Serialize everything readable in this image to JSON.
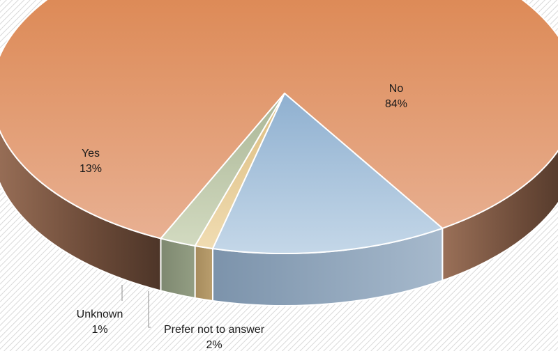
{
  "chart_data": {
    "type": "pie",
    "title": "",
    "style": "3d",
    "slices": [
      {
        "label": "No",
        "value": 84,
        "percent_label": "84%",
        "color": "#e0875a"
      },
      {
        "label": "Yes",
        "value": 13,
        "percent_label": "13%",
        "color": "#9fbad6"
      },
      {
        "label": "Unknown",
        "value": 1,
        "percent_label": "1%",
        "color": "#e6c88f"
      },
      {
        "label": "Prefer not to answer",
        "value": 2,
        "percent_label": "2%",
        "color": "#b9c3a4"
      }
    ]
  }
}
